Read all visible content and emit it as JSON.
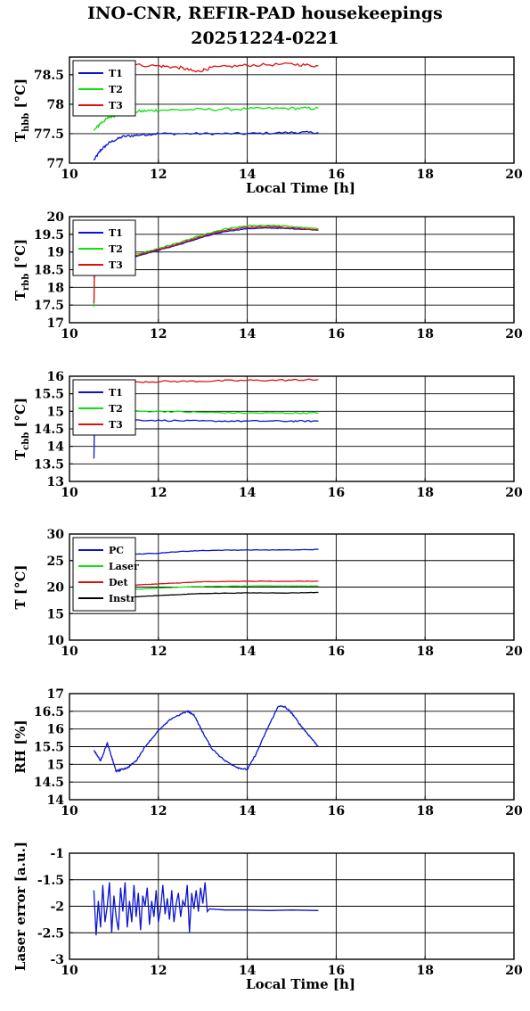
{
  "title": "INO-CNR, REFIR-PAD housekeepings",
  "subtitle": "20251224-0221",
  "colors": {
    "blue": "#0a14d2",
    "green": "#10e010",
    "red": "#e01010",
    "black": "#000000"
  },
  "chart_data": [
    {
      "type": "line",
      "ylabel": "T",
      "ylabel_sub": "hbb",
      "ylabel_unit": " [°C]",
      "xlabel": "Local Time [h]",
      "xlim": [
        10,
        20
      ],
      "ylim": [
        77,
        78.8
      ],
      "xticks": [
        "10",
        "12",
        "14",
        "16",
        "18",
        "20"
      ],
      "yticks": [
        "77",
        "77.5",
        "78",
        "78.5"
      ],
      "ytick_values": [
        77,
        77.5,
        78,
        78.5
      ],
      "legend": "top-left",
      "series": [
        {
          "name": "T1",
          "color": "blue",
          "noise": 0.02,
          "x": [
            10.55,
            10.7,
            10.9,
            11.2,
            11.6,
            12.0,
            13.0,
            14.0,
            15.0,
            15.6
          ],
          "y": [
            77.05,
            77.22,
            77.35,
            77.45,
            77.48,
            77.5,
            77.5,
            77.5,
            77.52,
            77.52
          ]
        },
        {
          "name": "T2",
          "color": "green",
          "noise": 0.025,
          "x": [
            10.55,
            10.7,
            10.9,
            11.2,
            11.6,
            12.0,
            13.0,
            14.0,
            15.0,
            15.6
          ],
          "y": [
            77.55,
            77.68,
            77.78,
            77.85,
            77.88,
            77.9,
            77.91,
            77.92,
            77.93,
            77.93
          ]
        },
        {
          "name": "T3",
          "color": "red",
          "noise": 0.025,
          "x": [
            10.55,
            11.0,
            12.0,
            12.5,
            12.85,
            13.2,
            14.0,
            15.0,
            15.6
          ],
          "y": [
            78.64,
            78.68,
            78.65,
            78.62,
            78.55,
            78.62,
            78.66,
            78.68,
            78.65
          ]
        }
      ]
    },
    {
      "type": "line",
      "ylabel": "T",
      "ylabel_sub": "rbb",
      "ylabel_unit": " [°C]",
      "xlabel": "",
      "xlim": [
        10,
        20
      ],
      "ylim": [
        17,
        20
      ],
      "xticks": [
        "10",
        "12",
        "14",
        "16",
        "18",
        "20"
      ],
      "yticks": [
        "17",
        "17.5",
        "18",
        "18.5",
        "19",
        "19.5",
        "20"
      ],
      "ytick_values": [
        17,
        17.5,
        18,
        18.5,
        19,
        19.5,
        20
      ],
      "legend": "top-left",
      "series": [
        {
          "name": "T1",
          "color": "blue",
          "noise": 0.01,
          "x": [
            10.6,
            11.0,
            11.5,
            12.0,
            12.5,
            13.0,
            13.5,
            14.0,
            14.5,
            15.0,
            15.6
          ],
          "y": [
            18.5,
            18.72,
            18.88,
            19.05,
            19.22,
            19.42,
            19.58,
            19.66,
            19.68,
            19.66,
            19.62
          ]
        },
        {
          "name": "T2",
          "color": "green",
          "noise": 0.015,
          "x": [
            10.55,
            10.56,
            10.6,
            11.0,
            11.5,
            12.0,
            12.5,
            13.0,
            13.5,
            14.0,
            14.5,
            15.0,
            15.6
          ],
          "y": [
            17.45,
            18.4,
            18.55,
            18.76,
            18.93,
            19.1,
            19.28,
            19.48,
            19.65,
            19.74,
            19.76,
            19.72,
            19.65
          ]
        },
        {
          "name": "T3",
          "color": "red",
          "noise": 0.015,
          "x": [
            10.55,
            10.56,
            10.6,
            11.0,
            11.5,
            12.0,
            12.5,
            13.0,
            13.5,
            14.0,
            14.5,
            15.0,
            15.6
          ],
          "y": [
            17.55,
            18.3,
            18.5,
            18.72,
            18.9,
            19.07,
            19.25,
            19.45,
            19.62,
            19.7,
            19.72,
            19.68,
            19.62
          ]
        }
      ]
    },
    {
      "type": "line",
      "ylabel": "T",
      "ylabel_sub": "cbb",
      "ylabel_unit": " [°C]",
      "xlabel": "",
      "xlim": [
        10,
        20
      ],
      "ylim": [
        13,
        16
      ],
      "xticks": [
        "10",
        "12",
        "14",
        "16",
        "18",
        "20"
      ],
      "yticks": [
        "13",
        "13.5",
        "14",
        "14.5",
        "15",
        "15.5",
        "16"
      ],
      "ytick_values": [
        13,
        13.5,
        14,
        14.5,
        15,
        15.5,
        16
      ],
      "legend": "top-left",
      "series": [
        {
          "name": "T1",
          "color": "blue",
          "noise": 0.02,
          "x": [
            10.55,
            10.56,
            10.6,
            11.0,
            12.0,
            13.0,
            14.0,
            15.0,
            15.6
          ],
          "y": [
            13.65,
            14.5,
            14.78,
            14.76,
            14.74,
            14.72,
            14.72,
            14.72,
            14.72
          ]
        },
        {
          "name": "T2",
          "color": "green",
          "noise": 0.02,
          "x": [
            10.6,
            11.0,
            12.0,
            13.0,
            14.0,
            15.0,
            15.6
          ],
          "y": [
            14.98,
            15.0,
            15.0,
            14.97,
            14.95,
            14.95,
            14.95
          ]
        },
        {
          "name": "T3",
          "color": "red",
          "noise": 0.025,
          "x": [
            10.6,
            11.0,
            12.0,
            13.0,
            14.0,
            15.0,
            15.6
          ],
          "y": [
            15.82,
            15.83,
            15.85,
            15.86,
            15.88,
            15.89,
            15.9
          ]
        }
      ]
    },
    {
      "type": "line",
      "ylabel": "T [°C]",
      "ylabel_sub": "",
      "ylabel_unit": "",
      "xlabel": "",
      "xlim": [
        10,
        20
      ],
      "ylim": [
        10,
        30
      ],
      "xticks": [
        "10",
        "12",
        "14",
        "16",
        "18",
        "20"
      ],
      "yticks": [
        "10",
        "15",
        "20",
        "25",
        "30"
      ],
      "ytick_values": [
        10,
        15,
        20,
        25,
        30
      ],
      "legend": "top-left",
      "series": [
        {
          "name": "PC",
          "color": "blue",
          "noise": 0.05,
          "x": [
            10.6,
            11.0,
            11.5,
            12.0,
            12.5,
            13.0,
            14.0,
            15.0,
            15.6
          ],
          "y": [
            25.8,
            26.0,
            26.2,
            26.4,
            26.7,
            26.9,
            27.0,
            27.0,
            27.1
          ]
        },
        {
          "name": "Laser",
          "color": "green",
          "noise": 0.04,
          "x": [
            10.6,
            11.0,
            11.5,
            12.0,
            12.5,
            13.0,
            14.0,
            15.0,
            15.6
          ],
          "y": [
            19.2,
            19.4,
            19.6,
            19.8,
            20.0,
            20.1,
            20.2,
            20.2,
            20.2
          ]
        },
        {
          "name": "Det",
          "color": "red",
          "noise": 0.04,
          "x": [
            10.6,
            11.0,
            11.5,
            12.0,
            12.5,
            13.0,
            14.0,
            15.0,
            15.6
          ],
          "y": [
            20.0,
            20.2,
            20.4,
            20.6,
            20.8,
            21.0,
            21.1,
            21.1,
            21.1
          ]
        },
        {
          "name": "Instr",
          "color": "black",
          "noise": 0.04,
          "x": [
            10.6,
            11.0,
            11.5,
            12.0,
            12.5,
            13.0,
            14.0,
            15.0,
            15.6
          ],
          "y": [
            17.9,
            18.0,
            18.2,
            18.4,
            18.6,
            18.8,
            18.9,
            18.9,
            19.0
          ]
        }
      ]
    },
    {
      "type": "line",
      "ylabel": "RH [%]",
      "ylabel_sub": "",
      "ylabel_unit": "",
      "xlabel": "",
      "xlim": [
        10,
        20
      ],
      "ylim": [
        14,
        17
      ],
      "xticks": [
        "10",
        "12",
        "14",
        "16",
        "18",
        "20"
      ],
      "yticks": [
        "14",
        "14.5",
        "15",
        "15.5",
        "16",
        "16.5",
        "17"
      ],
      "ytick_values": [
        14,
        14.5,
        15,
        15.5,
        16,
        16.5,
        17
      ],
      "legend": "",
      "series": [
        {
          "name": "",
          "color": "blue",
          "noise": 0.02,
          "x": [
            10.55,
            10.7,
            10.85,
            10.95,
            11.05,
            11.15,
            11.3,
            11.5,
            11.7,
            12.0,
            12.3,
            12.65,
            12.8,
            13.0,
            13.2,
            13.5,
            13.8,
            14.0,
            14.2,
            14.45,
            14.7,
            14.85,
            15.0,
            15.2,
            15.4,
            15.6
          ],
          "y": [
            15.4,
            15.1,
            15.6,
            15.2,
            14.8,
            14.85,
            14.9,
            15.1,
            15.5,
            15.95,
            16.3,
            16.5,
            16.4,
            15.9,
            15.45,
            15.1,
            14.9,
            14.85,
            15.3,
            16.0,
            16.65,
            16.62,
            16.45,
            16.1,
            15.8,
            15.5
          ]
        }
      ]
    },
    {
      "type": "line",
      "ylabel": "Laser error [a.u.]",
      "ylabel_sub": "",
      "ylabel_unit": "",
      "xlabel": "Local Time [h]",
      "xlim": [
        10,
        20
      ],
      "ylim": [
        -3,
        -1
      ],
      "xticks": [
        "10",
        "12",
        "14",
        "16",
        "18",
        "20"
      ],
      "yticks": [
        "-3",
        "-2.5",
        "-2",
        "-1.5",
        "-1"
      ],
      "ytick_values": [
        -3,
        -2.5,
        -2,
        -1.5,
        -1
      ],
      "legend": "",
      "series": [
        {
          "name": "",
          "color": "blue",
          "noise": 0.0,
          "x": [
            10.55,
            10.6,
            10.65,
            10.7,
            10.75,
            10.8,
            10.85,
            10.9,
            10.95,
            11.0,
            11.05,
            11.1,
            11.15,
            11.2,
            11.25,
            11.3,
            11.35,
            11.4,
            11.45,
            11.5,
            11.55,
            11.6,
            11.65,
            11.7,
            11.75,
            11.8,
            11.85,
            11.9,
            11.95,
            12.0,
            12.05,
            12.1,
            12.15,
            12.2,
            12.25,
            12.3,
            12.35,
            12.4,
            12.45,
            12.5,
            12.55,
            12.6,
            12.65,
            12.7,
            12.75,
            12.8,
            12.85,
            12.9,
            12.95,
            13.0,
            13.05,
            13.1,
            13.15,
            13.5,
            14.0,
            14.5,
            15.0,
            15.6
          ],
          "y": [
            -1.7,
            -2.55,
            -1.9,
            -2.4,
            -1.6,
            -2.3,
            -2.0,
            -1.55,
            -2.5,
            -1.8,
            -2.2,
            -2.45,
            -1.65,
            -2.1,
            -1.55,
            -2.4,
            -1.9,
            -2.3,
            -1.6,
            -2.2,
            -1.75,
            -2.45,
            -1.8,
            -2.0,
            -1.65,
            -2.35,
            -1.9,
            -2.2,
            -1.7,
            -2.3,
            -2.05,
            -1.6,
            -2.15,
            -1.85,
            -2.25,
            -1.7,
            -2.3,
            -1.95,
            -1.75,
            -2.2,
            -1.9,
            -2.0,
            -1.6,
            -2.5,
            -1.75,
            -2.05,
            -1.7,
            -2.1,
            -1.65,
            -1.95,
            -1.55,
            -2.1,
            -2.05,
            -2.07,
            -2.07,
            -2.08,
            -2.07,
            -2.08
          ]
        }
      ]
    }
  ]
}
